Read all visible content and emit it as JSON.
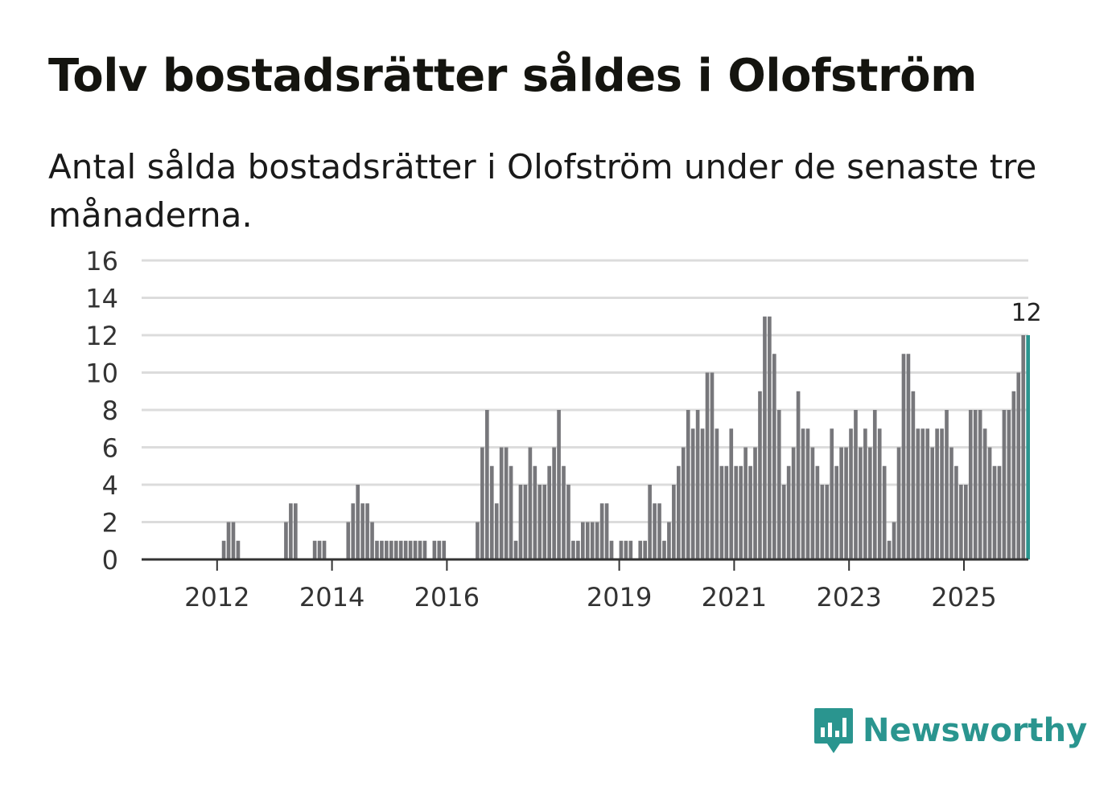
{
  "header": {
    "title": "Tolv bostadsrätter såldes i Olofström",
    "subtitle": "Antal sålda bostadsrätter i Olofström under de senaste tre månaderna."
  },
  "brand": {
    "name": "Newsworthy",
    "icon": "bar-chart-speech-bubble-icon"
  },
  "colors": {
    "bar": "#77777b",
    "highlight": "#2a958f",
    "grid": "#dcdcdc",
    "axis": "#333333"
  },
  "chart_data": {
    "type": "bar",
    "title": "Tolv bostadsrätter såldes i Olofström",
    "xlabel": "",
    "ylabel": "",
    "ylim": [
      0,
      16
    ],
    "yticks": [
      "0",
      "2",
      "4",
      "6",
      "8",
      "10",
      "12",
      "14",
      "16"
    ],
    "x_start": "2011-03",
    "interval": "month",
    "xtick_labels": [
      {
        "label": "2012",
        "month_index": 10
      },
      {
        "label": "2014",
        "month_index": 34
      },
      {
        "label": "2016",
        "month_index": 58
      },
      {
        "label": "2019",
        "month_index": 94
      },
      {
        "label": "2021",
        "month_index": 118
      },
      {
        "label": "2023",
        "month_index": 142
      },
      {
        "label": "2025",
        "month_index": 166
      }
    ],
    "values": [
      0,
      0,
      0,
      0,
      0,
      0,
      0,
      0,
      0,
      0,
      0,
      1,
      2,
      2,
      1,
      0,
      0,
      0,
      0,
      0,
      0,
      0,
      0,
      0,
      2,
      3,
      3,
      0,
      0,
      0,
      1,
      1,
      1,
      0,
      0,
      0,
      0,
      2,
      3,
      4,
      3,
      3,
      2,
      1,
      1,
      1,
      1,
      1,
      1,
      1,
      1,
      1,
      1,
      1,
      0,
      1,
      1,
      1,
      0,
      0,
      0,
      0,
      0,
      0,
      2,
      6,
      8,
      5,
      3,
      6,
      6,
      5,
      1,
      4,
      4,
      6,
      5,
      4,
      4,
      5,
      6,
      8,
      5,
      4,
      1,
      1,
      2,
      2,
      2,
      2,
      3,
      3,
      1,
      0,
      1,
      1,
      1,
      0,
      1,
      1,
      4,
      3,
      3,
      1,
      2,
      4,
      5,
      6,
      8,
      7,
      8,
      7,
      10,
      10,
      7,
      5,
      5,
      7,
      5,
      5,
      6,
      5,
      6,
      9,
      13,
      13,
      11,
      8,
      4,
      5,
      6,
      9,
      7,
      7,
      6,
      5,
      4,
      4,
      7,
      5,
      6,
      6,
      7,
      8,
      6,
      7,
      6,
      8,
      7,
      5,
      1,
      2,
      6,
      11,
      11,
      9,
      7,
      7,
      7,
      6,
      7,
      7,
      8,
      6,
      5,
      4,
      4,
      8,
      8,
      8,
      7,
      6,
      5,
      5,
      8,
      8,
      9,
      10,
      12,
      12
    ],
    "highlight_last": true,
    "last_value_label": "12"
  }
}
